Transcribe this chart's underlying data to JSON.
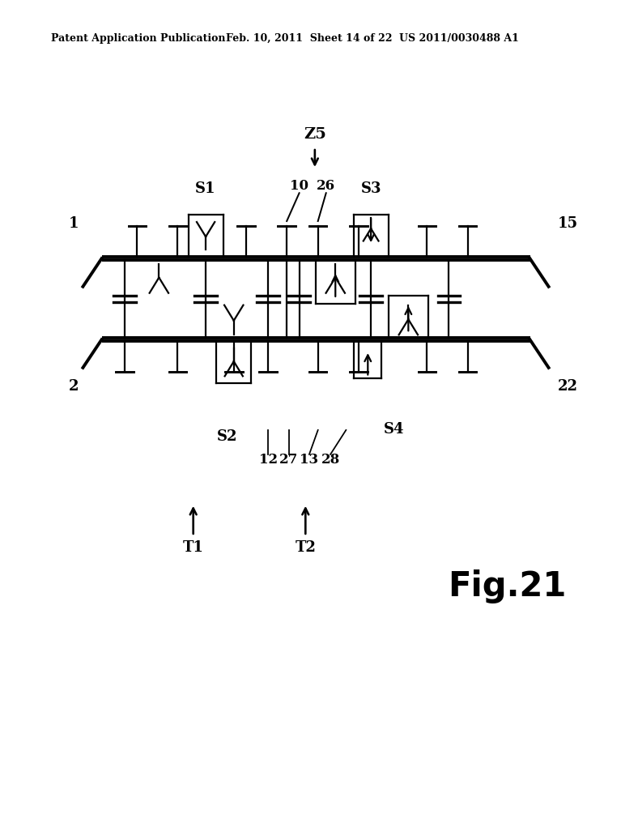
{
  "header_left": "Patent Application Publication",
  "header_mid": "Feb. 10, 2011  Sheet 14 of 22",
  "header_right": "US 2011/0030488 A1",
  "fig_label": "Fig.21",
  "bg_color": "#ffffff",
  "line_color": "#000000",
  "lw": 1.6
}
